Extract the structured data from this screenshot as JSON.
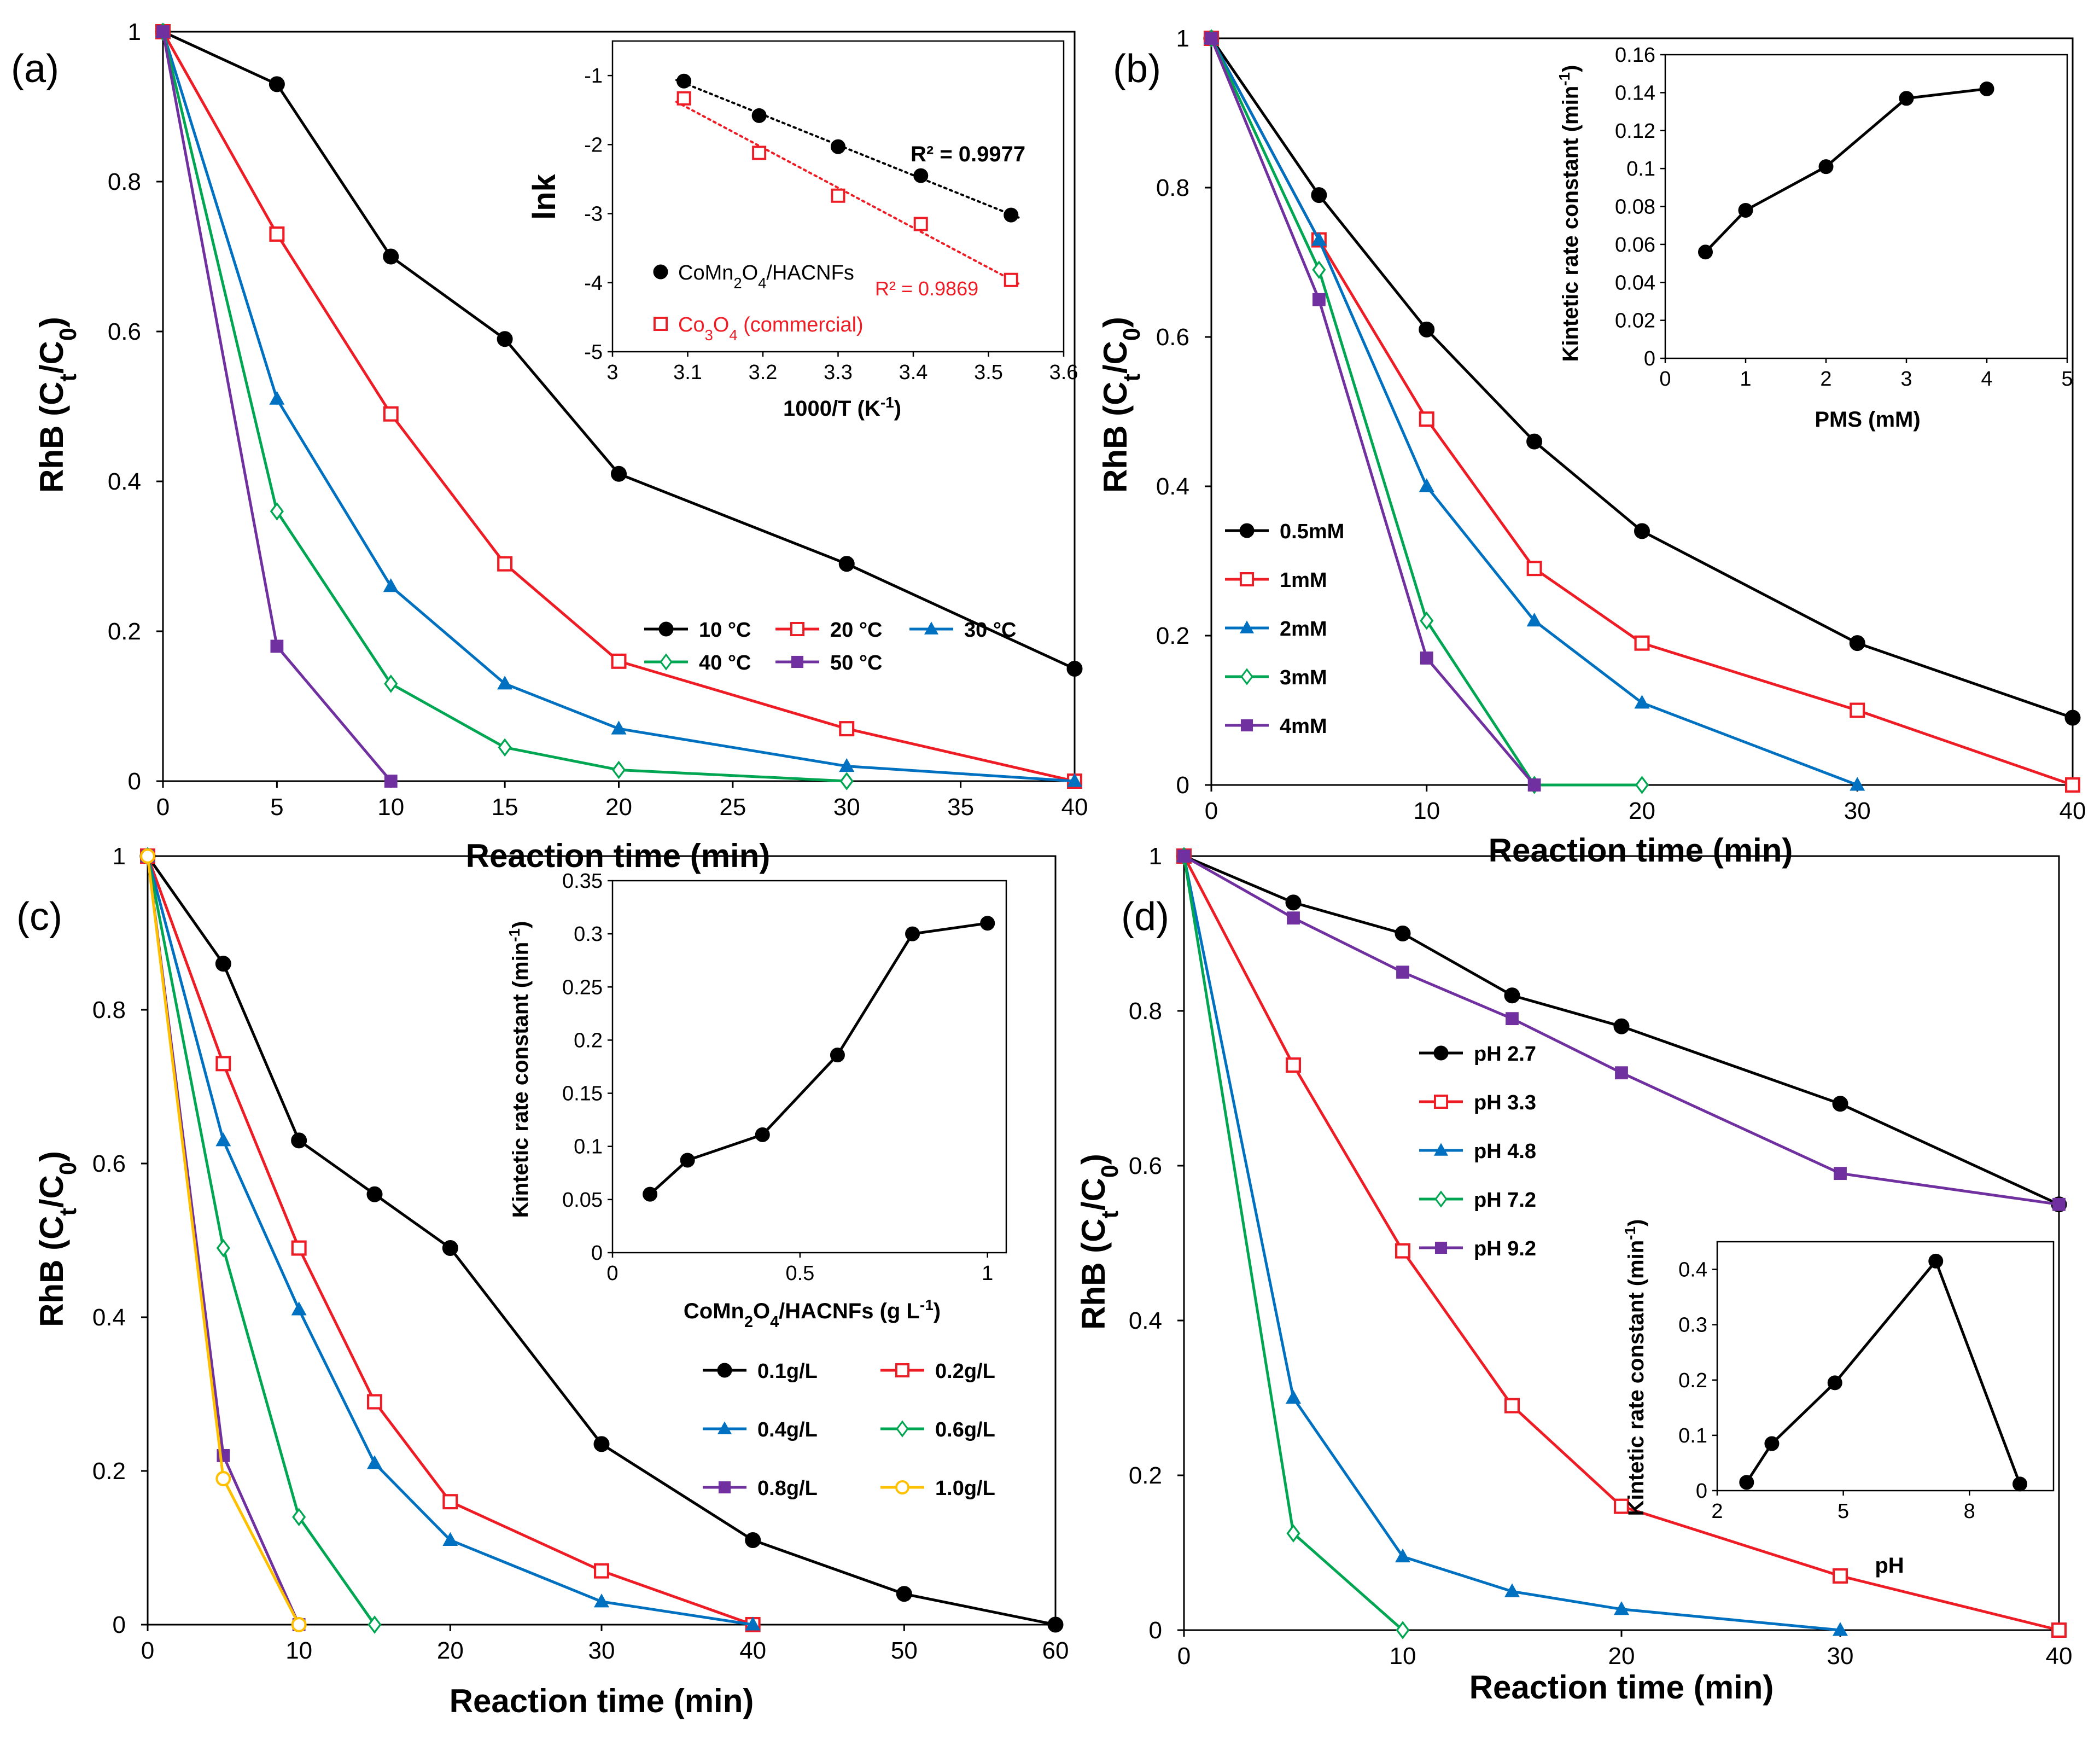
{
  "colors": {
    "black": "#000000",
    "red": "#ee1c25",
    "blue": "#0070c0",
    "green": "#00a651",
    "purple": "#7030a0",
    "orange": "#ffc000"
  },
  "chart_data": [
    {
      "panel": "(a)",
      "type": "line",
      "xlabel": "Reaction time (min)",
      "ylabel": "RhB (C_t/C_0)",
      "xlim": [
        0,
        40
      ],
      "ylim": [
        0,
        1
      ],
      "xticks": [
        "0",
        "5",
        "10",
        "15",
        "20",
        "25",
        "30",
        "35",
        "40"
      ],
      "yticks": [
        "0",
        "0.2",
        "0.4",
        "0.6",
        "0.8",
        "1"
      ],
      "legend_position": "center-right",
      "series": [
        {
          "name": "10 °C",
          "color": "#000000",
          "marker": "circle",
          "x": [
            0,
            5,
            10,
            15,
            20,
            30,
            40
          ],
          "y": [
            1,
            0.93,
            0.7,
            0.59,
            0.41,
            0.29,
            0.15
          ]
        },
        {
          "name": "20 °C",
          "color": "#ee1c25",
          "marker": "square-open",
          "x": [
            0,
            5,
            10,
            15,
            20,
            30,
            40
          ],
          "y": [
            1,
            0.73,
            0.49,
            0.29,
            0.16,
            0.07,
            0
          ]
        },
        {
          "name": "30 °C",
          "color": "#0070c0",
          "marker": "triangle",
          "x": [
            0,
            5,
            10,
            15,
            20,
            30,
            40
          ],
          "y": [
            1,
            0.51,
            0.26,
            0.13,
            0.07,
            0.02,
            0
          ]
        },
        {
          "name": "40 °C",
          "color": "#00a651",
          "marker": "diamond-open",
          "x": [
            0,
            5,
            10,
            15,
            20,
            30
          ],
          "y": [
            1,
            0.36,
            0.13,
            0.045,
            0.015,
            0
          ]
        },
        {
          "name": "50 °C",
          "color": "#7030a0",
          "marker": "square",
          "x": [
            0,
            5,
            10
          ],
          "y": [
            1,
            0.18,
            0
          ]
        }
      ],
      "inset": {
        "type": "scatter",
        "xlabel": "1000/T (K-1)",
        "ylabel": "lnk",
        "xlim": [
          3,
          3.6
        ],
        "ylim": [
          -5,
          -0.5
        ],
        "xticks": [
          "3",
          "3.1",
          "3.2",
          "3.3",
          "3.4",
          "3.5",
          "3.6"
        ],
        "yticks": [
          "-5",
          "-4",
          "-3",
          "-2",
          "-1"
        ],
        "series": [
          {
            "name": "CoMn2O4/HACNFs",
            "color": "#000000",
            "marker": "circle",
            "x": [
              3.095,
              3.195,
              3.3,
              3.41,
              3.53
            ],
            "y": [
              -1.08,
              -1.58,
              -2.03,
              -2.45,
              -3.02
            ],
            "r2": "R² = 0.9977"
          },
          {
            "name": "Co3O4 (commercial)",
            "color": "#ee1c25",
            "marker": "square-open",
            "x": [
              3.095,
              3.195,
              3.3,
              3.41,
              3.53
            ],
            "y": [
              -1.33,
              -2.12,
              -2.74,
              -3.15,
              -3.96
            ],
            "r2": "R² = 0.9869"
          }
        ]
      }
    },
    {
      "panel": "(b)",
      "type": "line",
      "xlabel": "Reaction time (min)",
      "ylabel": "RhB (C_t/C_0)",
      "xlim": [
        0,
        40
      ],
      "ylim": [
        0,
        1
      ],
      "xticks": [
        "0",
        "10",
        "20",
        "30",
        "40"
      ],
      "yticks": [
        "0",
        "0.2",
        "0.4",
        "0.6",
        "0.8",
        "1"
      ],
      "legend_position": "left",
      "series": [
        {
          "name": "0.5mM",
          "color": "#000000",
          "marker": "circle",
          "x": [
            0,
            5,
            10,
            15,
            20,
            30,
            40
          ],
          "y": [
            1,
            0.79,
            0.61,
            0.46,
            0.34,
            0.19,
            0.09
          ]
        },
        {
          "name": "1mM",
          "color": "#ee1c25",
          "marker": "square-open",
          "x": [
            0,
            5,
            10,
            15,
            20,
            30,
            40
          ],
          "y": [
            1,
            0.73,
            0.49,
            0.29,
            0.19,
            0.1,
            0
          ]
        },
        {
          "name": "2mM",
          "color": "#0070c0",
          "marker": "triangle",
          "x": [
            0,
            5,
            10,
            15,
            20,
            30
          ],
          "y": [
            1,
            0.73,
            0.4,
            0.22,
            0.11,
            0
          ]
        },
        {
          "name": "3mM",
          "color": "#00a651",
          "marker": "diamond-open",
          "x": [
            0,
            5,
            10,
            15,
            20
          ],
          "y": [
            1,
            0.69,
            0.22,
            0,
            0
          ]
        },
        {
          "name": "4mM",
          "color": "#7030a0",
          "marker": "square",
          "x": [
            0,
            5,
            10,
            15
          ],
          "y": [
            1,
            0.65,
            0.17,
            0
          ]
        }
      ],
      "inset": {
        "type": "line",
        "xlabel": "PMS (mM)",
        "ylabel": "Kintetic rate constant (min-1)",
        "xlim": [
          0,
          5
        ],
        "ylim": [
          0,
          0.16
        ],
        "xticks": [
          "0",
          "1",
          "2",
          "3",
          "4",
          "5"
        ],
        "yticks": [
          "0",
          "0.02",
          "0.04",
          "0.06",
          "0.08",
          "0.1",
          "0.12",
          "0.14",
          "0.16"
        ],
        "series": [
          {
            "name": "k",
            "color": "#000000",
            "marker": "circle",
            "x": [
              0.5,
              1,
              2,
              3,
              4
            ],
            "y": [
              0.056,
              0.078,
              0.101,
              0.137,
              0.142
            ]
          }
        ]
      }
    },
    {
      "panel": "(c)",
      "type": "line",
      "xlabel": "Reaction time (min)",
      "ylabel": "RhB (C_t/C_0)",
      "xlim": [
        0,
        60
      ],
      "ylim": [
        0,
        1
      ],
      "xticks": [
        "0",
        "10",
        "20",
        "30",
        "40",
        "50",
        "60"
      ],
      "yticks": [
        "0",
        "0.2",
        "0.4",
        "0.6",
        "0.8",
        "1"
      ],
      "legend_position": "bottom-right",
      "series": [
        {
          "name": "0.1g/L",
          "color": "#000000",
          "marker": "circle",
          "x": [
            0,
            5,
            10,
            15,
            20,
            30,
            40,
            50,
            60
          ],
          "y": [
            1,
            0.86,
            0.63,
            0.56,
            0.49,
            0.235,
            0.11,
            0.04,
            0
          ]
        },
        {
          "name": "0.2g/L",
          "color": "#ee1c25",
          "marker": "square-open",
          "x": [
            0,
            5,
            10,
            15,
            20,
            30,
            40
          ],
          "y": [
            1,
            0.73,
            0.49,
            0.29,
            0.16,
            0.07,
            0
          ]
        },
        {
          "name": "0.4g/L",
          "color": "#0070c0",
          "marker": "triangle",
          "x": [
            0,
            5,
            10,
            15,
            20,
            30,
            40
          ],
          "y": [
            1,
            0.63,
            0.41,
            0.21,
            0.11,
            0.03,
            0
          ]
        },
        {
          "name": "0.6g/L",
          "color": "#00a651",
          "marker": "diamond-open",
          "x": [
            0,
            5,
            10,
            15
          ],
          "y": [
            1,
            0.49,
            0.14,
            0
          ]
        },
        {
          "name": "0.8g/L",
          "color": "#7030a0",
          "marker": "square",
          "x": [
            0,
            5,
            10
          ],
          "y": [
            1,
            0.22,
            0
          ]
        },
        {
          "name": "1.0g/L",
          "color": "#ffc000",
          "marker": "circle-open",
          "x": [
            0,
            5,
            10
          ],
          "y": [
            1,
            0.19,
            0
          ]
        }
      ],
      "inset": {
        "type": "line",
        "xlabel": "CoMn2O4/HACNFs (g L-1)",
        "ylabel": "Kintetic rate constant (min-1)",
        "xlim": [
          0,
          1.05
        ],
        "ylim": [
          0,
          0.35
        ],
        "xticks": [
          "0",
          "0.5",
          "1"
        ],
        "yticks": [
          "0",
          "0.05",
          "0.1",
          "0.15",
          "0.2",
          "0.25",
          "0.3",
          "0.35"
        ],
        "series": [
          {
            "name": "k",
            "color": "#000000",
            "marker": "circle",
            "x": [
              0.1,
              0.2,
              0.4,
              0.6,
              0.8,
              1.0
            ],
            "y": [
              0.055,
              0.087,
              0.111,
              0.186,
              0.3,
              0.31
            ]
          }
        ]
      }
    },
    {
      "panel": "(d)",
      "type": "line",
      "xlabel": "Reaction time (min)",
      "ylabel": "RhB (C_t/C_0)",
      "xlim": [
        0,
        40
      ],
      "ylim": [
        0,
        1
      ],
      "xticks": [
        "0",
        "10",
        "20",
        "30",
        "40"
      ],
      "yticks": [
        "0",
        "0.2",
        "0.4",
        "0.6",
        "0.8",
        "1"
      ],
      "legend_position": "center",
      "series": [
        {
          "name": "pH 2.7",
          "color": "#000000",
          "marker": "circle",
          "x": [
            0,
            5,
            10,
            15,
            20,
            30,
            40
          ],
          "y": [
            1,
            0.94,
            0.9,
            0.82,
            0.78,
            0.68,
            0.55
          ]
        },
        {
          "name": "pH 3.3",
          "color": "#ee1c25",
          "marker": "square-open",
          "x": [
            0,
            5,
            10,
            15,
            20,
            30,
            40
          ],
          "y": [
            1,
            0.73,
            0.49,
            0.29,
            0.16,
            0.07,
            0
          ]
        },
        {
          "name": "pH 4.8",
          "color": "#0070c0",
          "marker": "triangle",
          "x": [
            0,
            5,
            10,
            15,
            20,
            30
          ],
          "y": [
            1,
            0.3,
            0.095,
            0.05,
            0.027,
            0
          ]
        },
        {
          "name": "pH 7.2",
          "color": "#00a651",
          "marker": "diamond-open",
          "x": [
            0,
            5,
            10
          ],
          "y": [
            1,
            0.125,
            0
          ]
        },
        {
          "name": "pH 9.2",
          "color": "#7030a0",
          "marker": "square",
          "x": [
            0,
            5,
            10,
            15,
            20,
            30,
            40
          ],
          "y": [
            1,
            0.92,
            0.85,
            0.79,
            0.72,
            0.59,
            0.55
          ]
        }
      ],
      "inset": {
        "type": "line",
        "xlabel": "pH",
        "ylabel": "Kintetic rate constant (min-1)",
        "xlim": [
          2,
          10
        ],
        "ylim": [
          0,
          0.45
        ],
        "xticks": [
          "2",
          "5",
          "8"
        ],
        "yticks": [
          "0",
          "0.1",
          "0.2",
          "0.3",
          "0.4"
        ],
        "series": [
          {
            "name": "k",
            "color": "#000000",
            "marker": "circle",
            "x": [
              2.7,
              3.3,
              4.8,
              7.2,
              9.2
            ],
            "y": [
              0.015,
              0.085,
              0.195,
              0.415,
              0.012
            ]
          }
        ]
      }
    }
  ]
}
